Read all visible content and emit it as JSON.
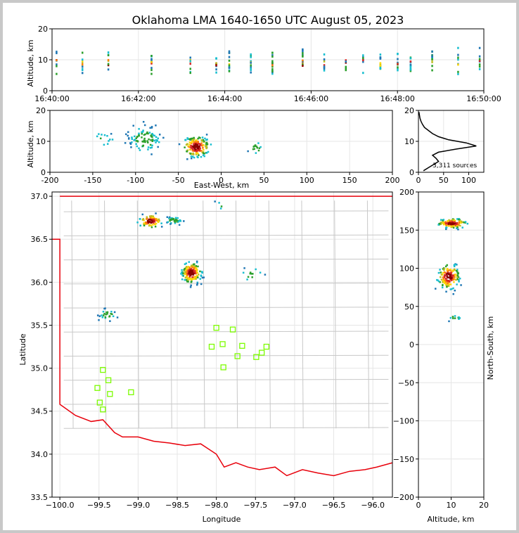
{
  "chart_data": [
    {
      "type": "heatmap",
      "title": "Oklahoma LMA 1640-1650 UTC August 05, 2023",
      "panel": "time-height",
      "xlabel": "",
      "ylabel": "Altitude, km",
      "xlim": [
        "16:40:00",
        "16:50:00"
      ],
      "ylim": [
        0,
        20
      ],
      "x_ticks": [
        "16:40:00",
        "16:42:00",
        "16:44:00",
        "16:46:00",
        "16:48:00",
        "16:50:00"
      ],
      "y_ticks": [
        0,
        10,
        20
      ],
      "bursts_minutes": [
        0.1,
        0.7,
        1.3,
        2.3,
        3.2,
        3.8,
        4.1,
        4.6,
        5.1,
        5.8,
        6.3,
        6.8,
        7.2,
        7.6,
        8.0,
        8.3,
        8.8,
        9.4,
        9.9
      ]
    },
    {
      "type": "heatmap",
      "panel": "east-west altitude",
      "xlabel": "East-West, km",
      "ylabel": "Altitude, km",
      "xlim": [
        -200,
        200
      ],
      "ylim": [
        0,
        20
      ],
      "x_ticks": [
        -200,
        -150,
        -100,
        -50,
        0,
        50,
        100,
        150,
        200
      ],
      "y_ticks": [
        0,
        10,
        20
      ],
      "clusters": [
        {
          "x": -140,
          "y": 11,
          "sx": 10,
          "sy": 1.5,
          "n": 12
        },
        {
          "x": -90,
          "y": 11,
          "sx": 14,
          "sy": 3,
          "n": 90
        },
        {
          "x": -30,
          "y": 8.5,
          "sx": 10,
          "sy": 2.2,
          "n": 180
        },
        {
          "x": 40,
          "y": 8,
          "sx": 6,
          "sy": 1.5,
          "n": 14
        }
      ]
    },
    {
      "type": "line",
      "panel": "altitude histogram",
      "xlim": [
        0,
        130
      ],
      "ylim": [
        0,
        20
      ],
      "x_ticks": [
        0,
        50,
        100
      ],
      "y_ticks": [
        0,
        10,
        20
      ],
      "annotation": "3,311 sources",
      "profile": [
        {
          "count": 10,
          "alt": 0.5
        },
        {
          "count": 20,
          "alt": 1.5
        },
        {
          "count": 30,
          "alt": 2.5
        },
        {
          "count": 40,
          "alt": 3.5
        },
        {
          "count": 35,
          "alt": 4.5
        },
        {
          "count": 28,
          "alt": 5.5
        },
        {
          "count": 40,
          "alt": 6.5
        },
        {
          "count": 75,
          "alt": 7.5
        },
        {
          "count": 115,
          "alt": 8.5
        },
        {
          "count": 95,
          "alt": 9.5
        },
        {
          "count": 60,
          "alt": 10.5
        },
        {
          "count": 40,
          "alt": 11.5
        },
        {
          "count": 28,
          "alt": 12.5
        },
        {
          "count": 20,
          "alt": 13.5
        },
        {
          "count": 12,
          "alt": 14.5
        },
        {
          "count": 8,
          "alt": 15.5
        },
        {
          "count": 5,
          "alt": 16.5
        },
        {
          "count": 3,
          "alt": 17.5
        },
        {
          "count": 2,
          "alt": 18.5
        },
        {
          "count": 1,
          "alt": 19.5
        }
      ]
    },
    {
      "type": "heatmap",
      "panel": "plan view",
      "xlabel": "Longitude",
      "ylabel": "Latitude",
      "xlim": [
        -100.1,
        -95.75
      ],
      "ylim": [
        33.5,
        37.05
      ],
      "x_ticks": [
        -100.0,
        -99.5,
        -99.0,
        -98.5,
        -98.0,
        -97.5,
        -97.0,
        -96.5,
        -96.0
      ],
      "x_tick_labels": [
        "−100.0",
        "−99.5",
        "−99.0",
        "−98.5",
        "−98.0",
        "−97.5",
        "−97.0",
        "−96.5",
        "−96.0"
      ],
      "y_ticks": [
        33.5,
        34.0,
        34.5,
        35.0,
        35.5,
        36.0,
        36.5,
        37.0
      ],
      "y_tick_labels": [
        "33.5",
        "34.0",
        "34.5",
        "35.0",
        "35.5",
        "36.0",
        "36.5",
        "37.0"
      ],
      "stations": [
        {
          "lon": -98.0,
          "lat": 35.47
        },
        {
          "lon": -97.79,
          "lat": 35.45
        },
        {
          "lon": -98.06,
          "lat": 35.25
        },
        {
          "lon": -97.92,
          "lat": 35.28
        },
        {
          "lon": -97.67,
          "lat": 35.26
        },
        {
          "lon": -97.36,
          "lat": 35.25
        },
        {
          "lon": -97.42,
          "lat": 35.18
        },
        {
          "lon": -97.49,
          "lat": 35.13
        },
        {
          "lon": -97.73,
          "lat": 35.14
        },
        {
          "lon": -97.91,
          "lat": 35.01
        },
        {
          "lon": -99.45,
          "lat": 34.98
        },
        {
          "lon": -99.38,
          "lat": 34.86
        },
        {
          "lon": -99.52,
          "lat": 34.77
        },
        {
          "lon": -99.36,
          "lat": 34.7
        },
        {
          "lon": -99.09,
          "lat": 34.72
        },
        {
          "lon": -99.49,
          "lat": 34.6
        },
        {
          "lon": -99.45,
          "lat": 34.52
        }
      ],
      "clusters": [
        {
          "lon": -98.85,
          "lat": 36.72,
          "slon": 0.1,
          "slat": 0.05,
          "n": 80
        },
        {
          "lon": -98.55,
          "lat": 36.73,
          "slon": 0.08,
          "slat": 0.03,
          "n": 40
        },
        {
          "lon": -98.33,
          "lat": 36.12,
          "slon": 0.08,
          "slat": 0.08,
          "n": 180
        },
        {
          "lon": -99.4,
          "lat": 35.63,
          "slon": 0.08,
          "slat": 0.05,
          "n": 25
        },
        {
          "lon": -97.95,
          "lat": 36.9,
          "slon": 0.05,
          "slat": 0.03,
          "n": 4
        },
        {
          "lon": -97.55,
          "lat": 36.1,
          "slon": 0.1,
          "slat": 0.06,
          "n": 12
        }
      ],
      "boundary_color": "#e8000b",
      "county_color": "#c8c8c8",
      "station_color": "#7cfc00"
    },
    {
      "type": "heatmap",
      "panel": "north-south altitude",
      "xlabel": "Altitude, km",
      "ylabel": "North-South, km",
      "xlim": [
        0,
        20
      ],
      "ylim": [
        -200,
        200
      ],
      "x_ticks": [
        0,
        10,
        20
      ],
      "y_ticks": [
        -200,
        -150,
        -100,
        -50,
        0,
        50,
        100,
        150,
        200
      ],
      "y_tick_labels": [
        "−200",
        "−150",
        "−100",
        "−50",
        "0",
        "50",
        "100",
        "150",
        "200"
      ],
      "clusters": [
        {
          "x": 10,
          "y": 160,
          "sx": 3,
          "sy": 4,
          "n": 130
        },
        {
          "x": 9,
          "y": 90,
          "sx": 2.2,
          "sy": 11,
          "n": 150
        },
        {
          "x": 11,
          "y": 36,
          "sx": 1.5,
          "sy": 3,
          "n": 10
        }
      ]
    }
  ]
}
